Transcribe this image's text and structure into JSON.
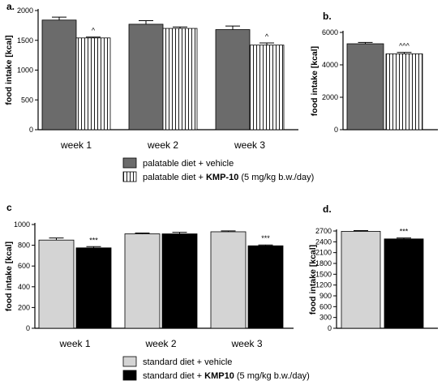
{
  "colors": {
    "vehicle_palatable": "#6b6b6b",
    "kmp_palatable_fill": "#ffffff",
    "kmp_palatable_hatch": "#000000",
    "vehicle_standard": "#d4d4d4",
    "kmp_standard": "#000000"
  },
  "legend_top": {
    "items": [
      {
        "text": "palatable diet + vehicle",
        "bold": "",
        "suffix": ""
      },
      {
        "text": "palatable diet + ",
        "bold": "KMP-10",
        "suffix": " (5 mg/kg b.w./day)"
      }
    ]
  },
  "legend_bottom": {
    "items": [
      {
        "text": "standard diet + vehicle",
        "bold": "",
        "suffix": ""
      },
      {
        "text": "standard diet + ",
        "bold": "KMP10",
        "suffix": " (5 mg/kg b.w./day)"
      }
    ]
  },
  "chart_data": [
    {
      "panel": "a.",
      "type": "bar",
      "ylabel": "food intake [kcal]",
      "categories": [
        "week 1",
        "week 2",
        "week 3"
      ],
      "ylim": [
        0,
        2000
      ],
      "yticks": [
        0,
        500,
        1000,
        1500,
        2000
      ],
      "series": [
        {
          "style": "vehicle_palatable",
          "values": [
            1840,
            1770,
            1680
          ],
          "err": [
            50,
            60,
            60
          ]
        },
        {
          "style": "kmp_palatable",
          "values": [
            1540,
            1700,
            1420
          ],
          "err": [
            15,
            25,
            35
          ]
        }
      ],
      "annotations": [
        {
          "category": 0,
          "series": 1,
          "text": "^"
        },
        {
          "category": 2,
          "series": 1,
          "text": "^"
        }
      ]
    },
    {
      "panel": "b.",
      "type": "bar",
      "ylabel": "food intake [kcal]",
      "categories": [
        ""
      ],
      "ylim": [
        0,
        6000
      ],
      "yticks": [
        0,
        2000,
        4000,
        6000
      ],
      "series": [
        {
          "style": "vehicle_palatable",
          "values": [
            5300
          ],
          "err": [
            80
          ]
        },
        {
          "style": "kmp_palatable",
          "values": [
            4680
          ],
          "err": [
            90
          ]
        }
      ],
      "annotations": [
        {
          "category": 0,
          "series": 1,
          "text": "^^^"
        }
      ]
    },
    {
      "panel": "c",
      "type": "bar",
      "ylabel": "food intake [kcal]",
      "categories": [
        "week 1",
        "week 2",
        "week 3"
      ],
      "ylim": [
        0,
        1000
      ],
      "yticks": [
        0,
        200,
        400,
        600,
        800,
        1000
      ],
      "series": [
        {
          "style": "vehicle_standard",
          "values": [
            850,
            910,
            930
          ],
          "err": [
            20,
            8,
            8
          ]
        },
        {
          "style": "kmp_standard",
          "values": [
            775,
            910,
            795
          ],
          "err": [
            12,
            15,
            8
          ]
        }
      ],
      "annotations": [
        {
          "category": 0,
          "series": 1,
          "text": "***"
        },
        {
          "category": 2,
          "series": 1,
          "text": "***"
        }
      ]
    },
    {
      "panel": "d.",
      "type": "bar",
      "ylabel": "food intake [kcal]",
      "categories": [
        ""
      ],
      "ylim": [
        0,
        2700
      ],
      "yticks": [
        0,
        300,
        600,
        900,
        1200,
        1500,
        1800,
        2100,
        2400,
        2700
      ],
      "series": [
        {
          "style": "vehicle_standard",
          "values": [
            2690
          ],
          "err": [
            20
          ]
        },
        {
          "style": "kmp_standard",
          "values": [
            2480
          ],
          "err": [
            25
          ]
        }
      ],
      "annotations": [
        {
          "category": 0,
          "series": 1,
          "text": "***"
        }
      ]
    }
  ]
}
